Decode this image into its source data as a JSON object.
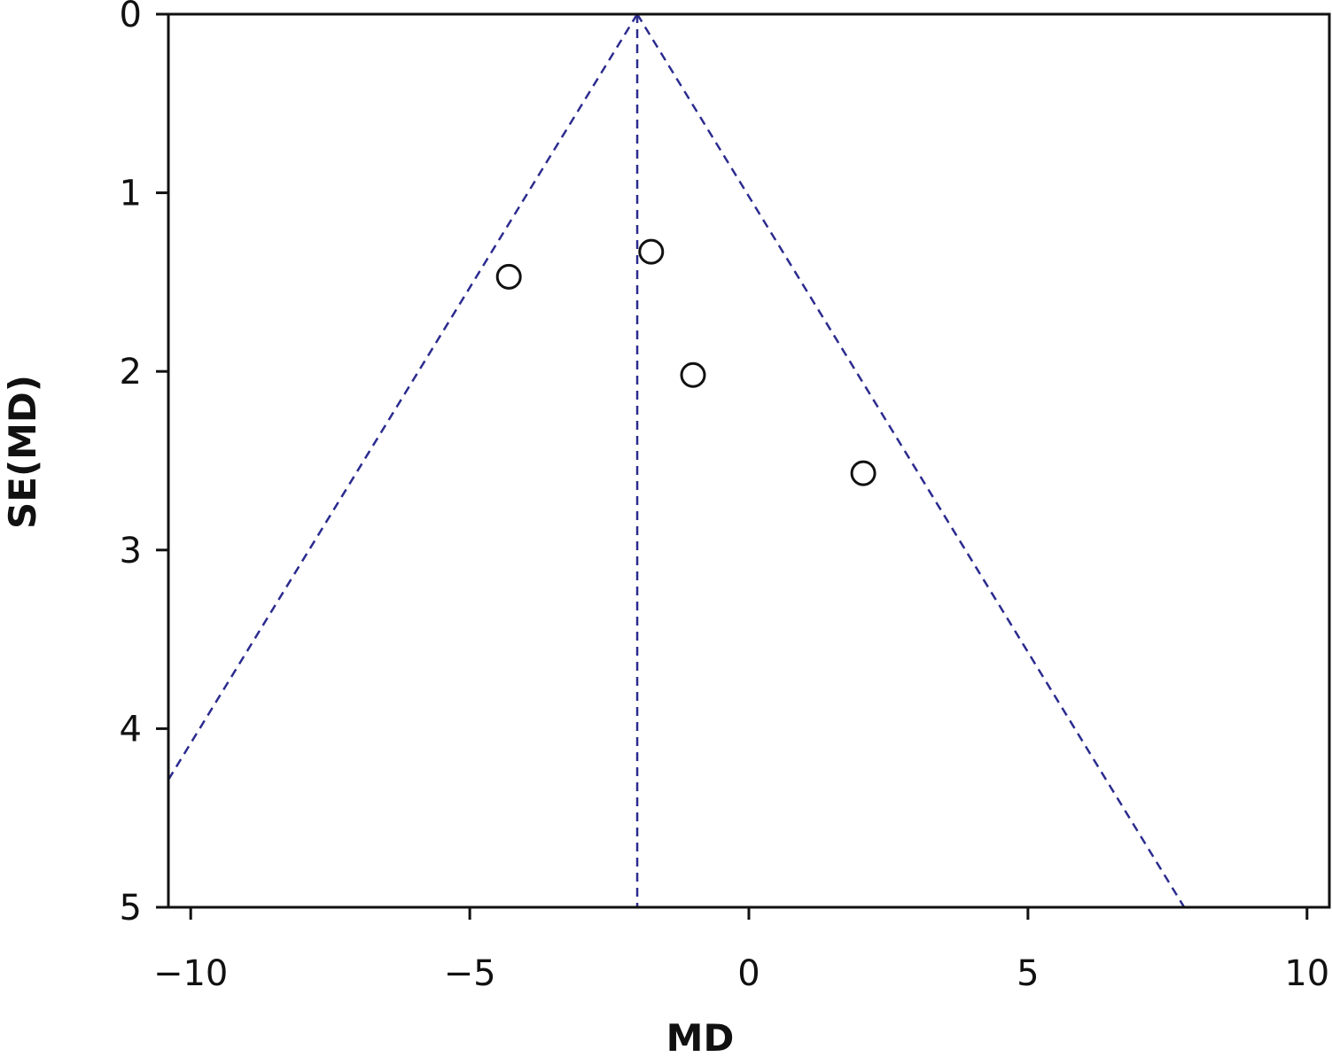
{
  "chart_data": {
    "type": "scatter",
    "title": "",
    "xlabel": "MD",
    "ylabel": "SE(MD)",
    "xlim": [
      -10.4,
      10.4
    ],
    "ylim": [
      0,
      5
    ],
    "y_reversed": true,
    "x_ticks": [
      {
        "value": -10,
        "label": "−10"
      },
      {
        "value": -5,
        "label": "−5"
      },
      {
        "value": 0,
        "label": "0"
      },
      {
        "value": 5,
        "label": "5"
      },
      {
        "value": 10,
        "label": "10"
      }
    ],
    "y_ticks": [
      {
        "value": 0,
        "label": "0"
      },
      {
        "value": 1,
        "label": "1"
      },
      {
        "value": 2,
        "label": "2"
      },
      {
        "value": 3,
        "label": "3"
      },
      {
        "value": 4,
        "label": "4"
      },
      {
        "value": 5,
        "label": "5"
      }
    ],
    "points": [
      {
        "x": -4.3,
        "y": 1.47
      },
      {
        "x": -1.75,
        "y": 1.33
      },
      {
        "x": -1.0,
        "y": 2.02
      },
      {
        "x": 2.05,
        "y": 2.57
      }
    ],
    "pooled_estimate": -2.0,
    "funnel_z": 1.96,
    "grid": false,
    "colors": {
      "funnel_lines": "#2b2b8f",
      "points": "#111111",
      "axes": "#111111"
    }
  }
}
